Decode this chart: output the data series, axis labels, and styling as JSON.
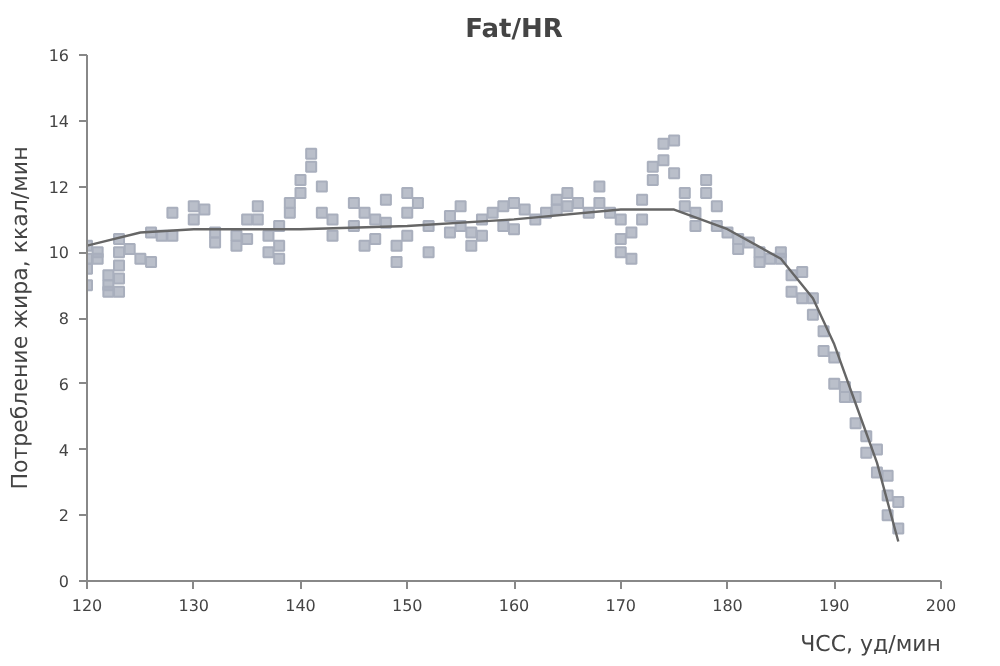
{
  "chart_data": {
    "type": "scatter",
    "title": "Fat/HR",
    "xlabel": "ЧСС, уд/мин",
    "ylabel": "Потребление жира, ккал/мин",
    "xlim": [
      120,
      200
    ],
    "ylim": [
      0,
      16
    ],
    "xticks": [
      120,
      130,
      140,
      150,
      160,
      170,
      180,
      190,
      200
    ],
    "yticks": [
      0,
      2,
      4,
      6,
      8,
      10,
      12,
      14,
      16
    ],
    "grid": false,
    "marker": "square",
    "series": [
      {
        "color": "#a9afbd",
        "x": [
          120,
          120,
          120,
          120,
          121,
          121,
          122,
          122,
          122,
          123,
          123,
          123,
          123,
          123,
          124,
          125,
          126,
          126,
          127,
          128,
          128,
          130,
          130,
          131,
          132,
          132,
          134,
          134,
          135,
          135,
          136,
          136,
          137,
          137,
          138,
          138,
          138,
          139,
          139,
          140,
          140,
          141,
          141,
          142,
          142,
          143,
          143,
          145,
          145,
          146,
          146,
          147,
          147,
          148,
          148,
          149,
          149,
          150,
          150,
          150,
          151,
          152,
          152,
          154,
          154,
          155,
          155,
          156,
          156,
          157,
          157,
          158,
          159,
          159,
          160,
          160,
          161,
          162,
          163,
          164,
          164,
          165,
          165,
          166,
          167,
          168,
          168,
          169,
          170,
          170,
          170,
          171,
          171,
          172,
          172,
          173,
          173,
          174,
          174,
          175,
          175,
          176,
          176,
          177,
          177,
          178,
          178,
          179,
          179,
          180,
          181,
          181,
          182,
          183,
          183,
          184,
          185,
          185,
          186,
          186,
          187,
          187,
          188,
          188,
          189,
          189,
          190,
          190,
          191,
          191,
          192,
          192,
          193,
          193,
          194,
          194,
          195,
          195,
          195,
          196,
          196
        ],
        "values": [
          10.2,
          9.8,
          9.5,
          9.0,
          10.0,
          9.8,
          9.3,
          9.0,
          8.8,
          10.4,
          10.0,
          9.6,
          9.2,
          8.8,
          10.1,
          9.8,
          10.6,
          9.7,
          10.5,
          11.2,
          10.5,
          11.4,
          11.0,
          11.3,
          10.6,
          10.3,
          10.5,
          10.2,
          10.4,
          11.0,
          11.4,
          11.0,
          10.5,
          10.0,
          10.8,
          10.2,
          9.8,
          11.5,
          11.2,
          12.2,
          11.8,
          13.0,
          12.6,
          12.0,
          11.2,
          11.0,
          10.5,
          11.5,
          10.8,
          11.2,
          10.2,
          11.0,
          10.4,
          11.6,
          10.9,
          10.2,
          9.7,
          11.8,
          11.2,
          10.5,
          11.5,
          10.8,
          10.0,
          11.1,
          10.6,
          11.4,
          10.8,
          10.6,
          10.2,
          11.0,
          10.5,
          11.2,
          11.4,
          10.8,
          11.5,
          10.7,
          11.3,
          11.0,
          11.2,
          11.6,
          11.3,
          11.8,
          11.4,
          11.5,
          11.2,
          12.0,
          11.5,
          11.2,
          11.0,
          10.4,
          10.0,
          10.6,
          9.8,
          11.6,
          11.0,
          12.6,
          12.2,
          13.3,
          12.8,
          13.4,
          12.4,
          11.8,
          11.4,
          11.2,
          10.8,
          12.2,
          11.8,
          11.4,
          10.8,
          10.6,
          10.4,
          10.1,
          10.3,
          10.0,
          9.7,
          9.8,
          10.0,
          9.8,
          9.3,
          8.8,
          9.4,
          8.6,
          8.6,
          8.1,
          7.6,
          7.0,
          6.8,
          6.0,
          5.9,
          5.6,
          5.6,
          4.8,
          4.4,
          3.9,
          4.0,
          3.3,
          3.2,
          2.6,
          2.0,
          2.4,
          1.6
        ]
      },
      {
        "type": "line",
        "color": "#666666",
        "marker": "none",
        "x": [
          120,
          125,
          130,
          140,
          150,
          160,
          170,
          175,
          180,
          185,
          188,
          190,
          192,
          194,
          196
        ],
        "values": [
          10.2,
          10.6,
          10.7,
          10.7,
          10.8,
          11.0,
          11.3,
          11.3,
          10.7,
          9.8,
          8.6,
          7.2,
          5.4,
          3.6,
          1.2
        ]
      }
    ]
  }
}
